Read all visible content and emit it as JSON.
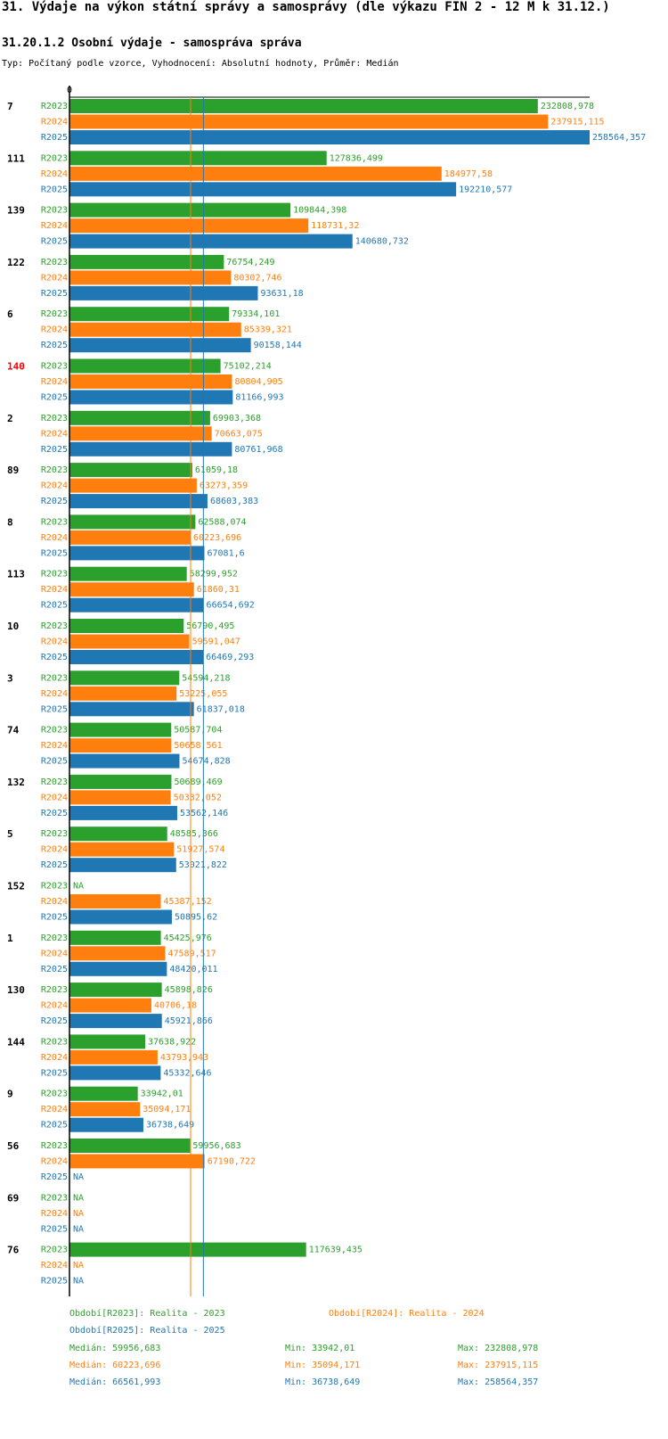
{
  "title": "31. Výdaje na výkon státní správy a samosprávy (dle výkazu FIN 2 - 12 M k 31.12.)",
  "subtitle": "31.20.1.2 Osobní výdaje - samospráva správa",
  "type_line": "Typ: Počítaný podle vzorce, Vyhodnocení: Absolutní hodnoty, Průměr: Medián",
  "colors": {
    "R2023": "#2ca02c",
    "R2024": "#ff7f0e",
    "R2025": "#1f77b4",
    "highlight": "#ff0000",
    "text": "#000000"
  },
  "chart_data": {
    "type": "bar",
    "orientation": "horizontal",
    "axis_zero_label": "0",
    "xlim": [
      0,
      258564.357
    ],
    "series": [
      {
        "name": "R2023",
        "values": [
          232808.978,
          127836.499,
          109844.398,
          76754.249,
          79334.101,
          75102.214,
          69903.368,
          61059.18,
          62588.074,
          58299.952,
          56790.495,
          54594.218,
          50587.704,
          50689.469,
          48585.366,
          null,
          45425.976,
          45898.826,
          37638.922,
          33942.01,
          59956.683,
          null,
          117639.435
        ]
      },
      {
        "name": "R2024",
        "values": [
          237915.115,
          184977.58,
          118731.32,
          80302.746,
          85339.321,
          80804.905,
          70663.075,
          63273.359,
          60223.696,
          61860.31,
          59591.047,
          53225.055,
          50658.561,
          50332.052,
          51927.574,
          45387.152,
          47589.517,
          40706.18,
          43793.943,
          35094.171,
          67190.722,
          null,
          null
        ]
      },
      {
        "name": "R2025",
        "values": [
          258564.357,
          192210.577,
          140680.732,
          93631.18,
          90158.144,
          81166.993,
          80761.968,
          68603.383,
          67081.6,
          66654.692,
          66469.293,
          61837.018,
          54674.828,
          53562.146,
          53021.822,
          50895.62,
          48420.011,
          45921.866,
          45332.646,
          36738.649,
          null,
          null,
          null
        ]
      }
    ],
    "value_labels": {
      "R2023": [
        "232808,978",
        "127836,499",
        "109844,398",
        "76754,249",
        "79334,101",
        "75102,214",
        "69903,368",
        "61059,18",
        "62588,074",
        "58299,952",
        "56790,495",
        "54594,218",
        "50587,704",
        "50689,469",
        "48585,366",
        "NA",
        "45425,976",
        "45898,826",
        "37638,922",
        "33942,01",
        "59956,683",
        "NA",
        "117639,435"
      ],
      "R2024": [
        "237915,115",
        "184977,58",
        "118731,32",
        "80302,746",
        "85339,321",
        "80804,905",
        "70663,075",
        "63273,359",
        "60223,696",
        "61860,31",
        "59591,047",
        "53225,055",
        "50658,561",
        "50332,052",
        "51927,574",
        "45387,152",
        "47589,517",
        "40706,18",
        "43793,943",
        "35094,171",
        "67190,722",
        "NA",
        "NA"
      ],
      "R2025": [
        "258564,357",
        "192210,577",
        "140680,732",
        "93631,18",
        "90158,144",
        "81166,993",
        "80761,968",
        "68603,383",
        "67081,6",
        "66654,692",
        "66469,293",
        "61837,018",
        "54674,828",
        "53562,146",
        "53021,822",
        "50895,62",
        "48420,011",
        "45921,866",
        "45332,646",
        "36738,649",
        "NA",
        "NA",
        "NA"
      ]
    },
    "groups": [
      {
        "label": "7",
        "highlight": false
      },
      {
        "label": "111",
        "highlight": false
      },
      {
        "label": "139",
        "highlight": false
      },
      {
        "label": "122",
        "highlight": false
      },
      {
        "label": "6",
        "highlight": false
      },
      {
        "label": "140",
        "highlight": true
      },
      {
        "label": "2",
        "highlight": false
      },
      {
        "label": "89",
        "highlight": false
      },
      {
        "label": "8",
        "highlight": false
      },
      {
        "label": "113",
        "highlight": false
      },
      {
        "label": "10",
        "highlight": false
      },
      {
        "label": "3",
        "highlight": false
      },
      {
        "label": "74",
        "highlight": false
      },
      {
        "label": "132",
        "highlight": false
      },
      {
        "label": "5",
        "highlight": false
      },
      {
        "label": "152",
        "highlight": false
      },
      {
        "label": "1",
        "highlight": false
      },
      {
        "label": "130",
        "highlight": false
      },
      {
        "label": "144",
        "highlight": false
      },
      {
        "label": "9",
        "highlight": false
      },
      {
        "label": "56",
        "highlight": false
      },
      {
        "label": "69",
        "highlight": false
      },
      {
        "label": "76",
        "highlight": false
      }
    ],
    "median_lines": [
      {
        "series": "R2024",
        "value": 60223.696
      },
      {
        "series": "R2025",
        "value": 66561.993
      }
    ]
  },
  "legend": {
    "period_r2023": "Období[R2023]: Realita - 2023",
    "period_r2024": "Období[R2024]: Realita - 2024",
    "period_r2025": "Období[R2025]: Realita - 2025",
    "stats": [
      {
        "series": "R2023",
        "median": "Medián: 59956,683",
        "min": "Min: 33942,01",
        "max": "Max: 232808,978"
      },
      {
        "series": "R2024",
        "median": "Medián: 60223,696",
        "min": "Min: 35094,171",
        "max": "Max: 237915,115"
      },
      {
        "series": "R2025",
        "median": "Medián: 66561,993",
        "min": "Min: 36738,649",
        "max": "Max: 258564,357"
      }
    ]
  }
}
